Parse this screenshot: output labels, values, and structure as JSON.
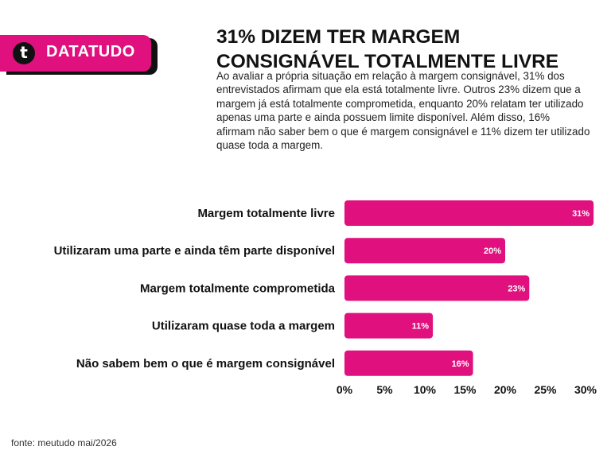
{
  "brand": {
    "logo_letter": "t",
    "name": "DATATUDO"
  },
  "header": {
    "title": "31% DIZEM TER MARGEM CONSIGNÁVEL TOTALMENTE LIVRE",
    "description": "Ao avaliar a própria situação em relação à margem consignável, 31% dos entrevistados afirmam que ela está totalmente livre. Outros 23% dizem que a margem já está totalmente comprometida, enquanto 20% relatam ter utilizado apenas uma parte e ainda possuem limite disponível. Além disso, 16% afirmam não saber bem o que é margem consignável e 11% dizem ter utilizado quase toda a margem."
  },
  "chart_data": {
    "type": "bar",
    "orientation": "horizontal",
    "categories": [
      "Margem totalmente livre",
      "Utilizaram uma parte e ainda têm parte disponível",
      "Margem totalmente comprometida",
      "Utilizaram quase toda a margem",
      "Não sabem bem o que é margem consignável"
    ],
    "values": [
      31,
      20,
      23,
      11,
      16
    ],
    "value_labels": [
      "31%",
      "20%",
      "23%",
      "11%",
      "16%"
    ],
    "xlim": [
      0,
      30
    ],
    "xticks": [
      0,
      5,
      10,
      15,
      20,
      25,
      30
    ],
    "xtick_labels": [
      "0%",
      "5%",
      "10%",
      "15%",
      "20%",
      "25%",
      "30%"
    ],
    "bar_color": "#e0107e",
    "grid": false,
    "legend": "none"
  },
  "footer": {
    "source": "fonte: meutudo mai/2026"
  },
  "colors": {
    "accent": "#e0107e",
    "text": "#111111",
    "background": "#ffffff"
  }
}
